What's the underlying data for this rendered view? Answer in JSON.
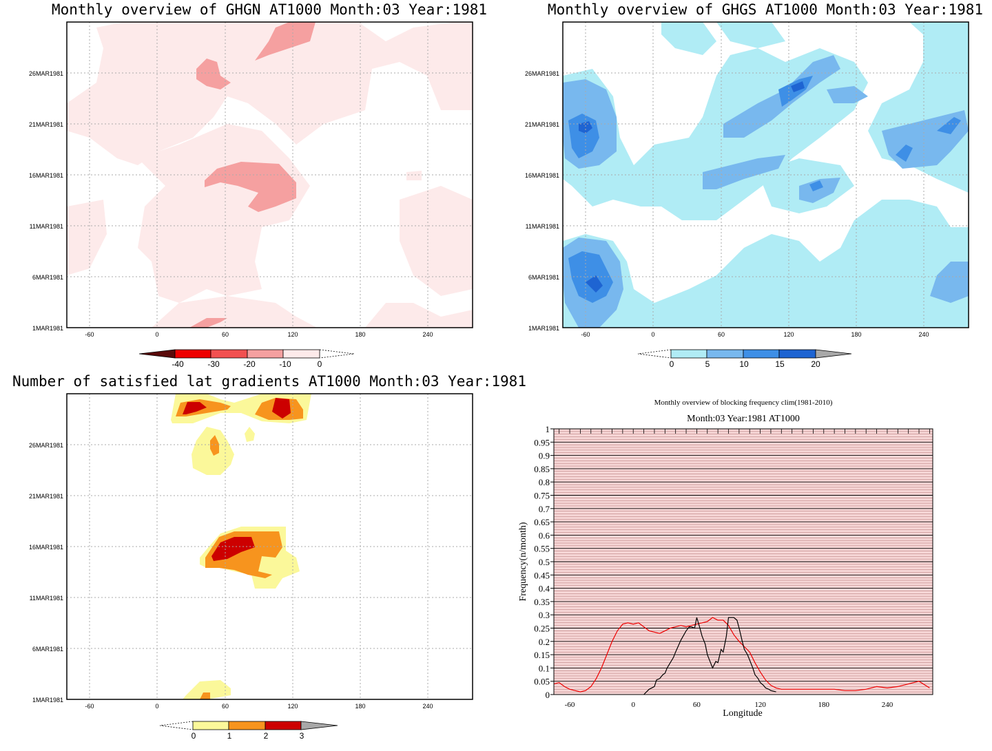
{
  "panels": [
    {
      "id": "ghgn",
      "title": "Monthly overview of GHGN AT1000 Month:03 Year:1981",
      "x_ticks": [
        "-60",
        "0",
        "60",
        "120",
        "180",
        "240"
      ],
      "y_ticks": [
        "1MAR1981",
        "6MAR1981",
        "11MAR1981",
        "16MAR1981",
        "21MAR1981",
        "26MAR1981"
      ],
      "colorbar": {
        "labels": [
          "-40",
          "-30",
          "-20",
          "-10",
          "0"
        ],
        "colors": [
          "#5a0a0a",
          "#ee0000",
          "#f25050",
          "#f5a0a0",
          "#fdeaea"
        ]
      }
    },
    {
      "id": "ghgs",
      "title": "Monthly overview of GHGS AT1000 Month:03 Year:1981",
      "x_ticks": [
        "-60",
        "0",
        "60",
        "120",
        "180",
        "240"
      ],
      "y_ticks": [
        "1MAR1981",
        "6MAR1981",
        "11MAR1981",
        "16MAR1981",
        "21MAR1981",
        "26MAR1981"
      ],
      "colorbar": {
        "labels": [
          "0",
          "5",
          "10",
          "15",
          "20"
        ],
        "colors": [
          "#b0ecf5",
          "#78b8ee",
          "#3e8fe6",
          "#1e64d2",
          "#a8a8a8"
        ]
      }
    },
    {
      "id": "lat-gradients",
      "title": "Number of satisfied lat gradients AT1000 Month:03 Year:1981",
      "x_ticks": [
        "-60",
        "0",
        "60",
        "120",
        "180",
        "240"
      ],
      "y_ticks": [
        "1MAR1981",
        "6MAR1981",
        "11MAR1981",
        "16MAR1981",
        "21MAR1981",
        "26MAR1981"
      ],
      "colorbar": {
        "labels": [
          "0",
          "1",
          "2",
          "3"
        ],
        "colors": [
          "#fbf89a",
          "#f7941e",
          "#cc0000",
          "#a8a8a8"
        ]
      }
    }
  ],
  "frequency_chart": {
    "title_line1": "Monthly overview of blocking frequency clim(1981-2010)",
    "title_line2": "Month:03 Year:1981  AT1000",
    "xlabel": "Longitude",
    "ylabel": "Frequency(n/month)",
    "x_ticks": [
      "-60",
      "0",
      "60",
      "120",
      "180",
      "240"
    ],
    "y_ticks": [
      "0",
      "0.05",
      "0.1",
      "0.15",
      "0.2",
      "0.25",
      "0.3",
      "0.35",
      "0.4",
      "0.45",
      "0.5",
      "0.55",
      "0.6",
      "0.65",
      "0.7",
      "0.75",
      "0.8",
      "0.85",
      "0.9",
      "0.95",
      "1"
    ],
    "line_colors": {
      "climatology": "#ee0000",
      "observed": "#000000"
    }
  },
  "chart_data": [
    {
      "type": "heatmap",
      "title": "Monthly overview of GHGN AT1000 Month:03 Year:1981",
      "x_axis": "longitude",
      "xlim": [
        -75,
        285
      ],
      "y_axis": "date",
      "ylim": [
        "1MAR1981",
        "31MAR1981"
      ],
      "levels": [
        -40,
        -30,
        -20,
        -10,
        0
      ],
      "note_regions": [
        {
          "level": "-10 to 0",
          "lon": [
            -75,
            285
          ],
          "dates": [
            "1MAR1981",
            "31MAR1981"
          ]
        },
        {
          "level": "-20 to -10",
          "lon": [
            70,
            140
          ],
          "dates": [
            "28MAR1981",
            "31MAR1981"
          ]
        },
        {
          "level": "-20 to -10",
          "lon": [
            35,
            70
          ],
          "dates": [
            "24MAR1981",
            "28MAR1981"
          ]
        },
        {
          "level": "-20 to -10",
          "lon": [
            45,
            125
          ],
          "dates": [
            "13MAR1981",
            "17MAR1981"
          ]
        },
        {
          "level": "-20 to -10",
          "lon": [
            28,
            60
          ],
          "dates": [
            "1MAR1981",
            "2MAR1981"
          ]
        }
      ]
    },
    {
      "type": "heatmap",
      "title": "Monthly overview of GHGS AT1000 Month:03 Year:1981",
      "x_axis": "longitude",
      "xlim": [
        -75,
        285
      ],
      "y_axis": "date",
      "ylim": [
        "1MAR1981",
        "31MAR1981"
      ],
      "levels": [
        0,
        5,
        10,
        15,
        20
      ],
      "note_regions": [
        {
          "level": "15 to 20",
          "lon": [
            -68,
            -50
          ],
          "dates": [
            "18MAR1981",
            "22MAR1981"
          ]
        },
        {
          "level": "15 to 20",
          "lon": [
            -66,
            -35
          ],
          "dates": [
            "3MAR1981",
            "7MAR1981"
          ]
        },
        {
          "level": "15 to 20",
          "lon": [
            105,
            120
          ],
          "dates": [
            "23MAR1981",
            "25MAR1981"
          ]
        },
        {
          "level": "15 to 20",
          "lon": [
            220,
            240
          ],
          "dates": [
            "16MAR1981",
            "18MAR1981"
          ]
        }
      ]
    },
    {
      "type": "heatmap",
      "title": "Number of satisfied lat gradients AT1000 Month:03 Year:1981",
      "x_axis": "longitude",
      "xlim": [
        -75,
        285
      ],
      "y_axis": "date",
      "ylim": [
        "1MAR1981",
        "31MAR1981"
      ],
      "levels": [
        0,
        1,
        2,
        3
      ],
      "note_regions": [
        {
          "level": "2 to 3",
          "lon": [
            35,
            55
          ],
          "dates": [
            "29MAR1981",
            "30MAR1981"
          ]
        },
        {
          "level": "2 to 3",
          "lon": [
            100,
            115
          ],
          "dates": [
            "29MAR1981",
            "31MAR1981"
          ]
        },
        {
          "level": "2 to 3",
          "lon": [
            48,
            80
          ],
          "dates": [
            "15MAR1981",
            "17MAR1981"
          ]
        },
        {
          "level": "1 to 2",
          "lon": [
            45,
            55
          ],
          "dates": [
            "25MAR1981",
            "27MAR1981"
          ]
        },
        {
          "level": "1 to 2",
          "lon": [
            90,
            105
          ],
          "dates": [
            "13MAR1981",
            "17MAR1981"
          ]
        }
      ]
    },
    {
      "type": "line",
      "title": "Monthly overview of blocking frequency clim(1981-2010)",
      "subtitle": "Month:03 Year:1981  AT1000",
      "xlabel": "Longitude",
      "ylabel": "Frequency(n/month)",
      "xlim": [
        -75,
        283
      ],
      "ylim": [
        0,
        1
      ],
      "series": [
        {
          "color": "#ee0000",
          "x": [
            -75,
            -70,
            -65,
            -60,
            -55,
            -50,
            -45,
            -40,
            -35,
            -30,
            -25,
            -20,
            -15,
            -10,
            -5,
            0,
            5,
            10,
            15,
            20,
            25,
            30,
            35,
            40,
            45,
            50,
            55,
            60,
            65,
            70,
            75,
            80,
            85,
            90,
            95,
            100,
            105,
            110,
            115,
            120,
            125,
            130,
            135,
            140,
            150,
            160,
            170,
            180,
            190,
            200,
            210,
            220,
            230,
            240,
            250,
            260,
            270,
            280
          ],
          "y": [
            0.04,
            0.045,
            0.03,
            0.02,
            0.015,
            0.01,
            0.015,
            0.03,
            0.06,
            0.1,
            0.15,
            0.2,
            0.24,
            0.265,
            0.27,
            0.265,
            0.27,
            0.255,
            0.24,
            0.235,
            0.23,
            0.24,
            0.25,
            0.255,
            0.26,
            0.255,
            0.26,
            0.265,
            0.27,
            0.275,
            0.29,
            0.28,
            0.28,
            0.26,
            0.225,
            0.2,
            0.18,
            0.16,
            0.12,
            0.085,
            0.055,
            0.035,
            0.025,
            0.02,
            0.02,
            0.02,
            0.02,
            0.02,
            0.02,
            0.015,
            0.015,
            0.02,
            0.03,
            0.025,
            0.03,
            0.04,
            0.05,
            0.025
          ]
        },
        {
          "color": "#000000",
          "x": [
            10,
            15,
            20,
            22,
            25,
            28,
            30,
            32,
            35,
            38,
            40,
            45,
            50,
            53,
            55,
            58,
            60,
            63,
            65,
            68,
            70,
            73,
            75,
            78,
            80,
            83,
            85,
            88,
            90,
            93,
            95,
            98,
            100,
            103,
            105,
            108,
            110,
            113,
            115,
            118,
            120,
            123,
            125,
            128,
            130,
            135
          ],
          "y": [
            0,
            0.02,
            0.03,
            0.055,
            0.06,
            0.075,
            0.08,
            0.1,
            0.12,
            0.14,
            0.16,
            0.205,
            0.24,
            0.255,
            0.255,
            0.25,
            0.29,
            0.25,
            0.22,
            0.19,
            0.15,
            0.12,
            0.1,
            0.125,
            0.12,
            0.17,
            0.16,
            0.22,
            0.29,
            0.29,
            0.29,
            0.28,
            0.25,
            0.2,
            0.17,
            0.15,
            0.13,
            0.1,
            0.075,
            0.06,
            0.045,
            0.035,
            0.025,
            0.02,
            0.015,
            0.01
          ]
        }
      ]
    }
  ]
}
